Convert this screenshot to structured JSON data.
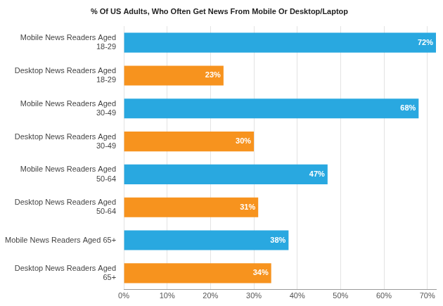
{
  "chart_data": {
    "type": "bar",
    "orientation": "horizontal",
    "title": "% Of US Adults, Who Often Get News From Mobile Or Desktop/Laptop",
    "categories": [
      "Mobile News Readers Aged 18-29",
      "Desktop News Readers Aged 18-29",
      "Mobile News Readers Aged 30-49",
      "Desktop News Readers Aged 30-49",
      "Mobile News Readers Aged 50-64",
      "Desktop News Readers Aged 50-64",
      "Mobile News Readers Aged 65+",
      "Desktop News Readers Aged 65+"
    ],
    "values": [
      72,
      23,
      68,
      30,
      47,
      31,
      38,
      34
    ],
    "value_labels": [
      "72%",
      "23%",
      "68%",
      "30%",
      "47%",
      "31%",
      "38%",
      "34%"
    ],
    "colors": [
      "#29a8e0",
      "#f7931e",
      "#29a8e0",
      "#f7931e",
      "#29a8e0",
      "#f7931e",
      "#29a8e0",
      "#f7931e"
    ],
    "xlim": [
      0,
      72
    ],
    "xticks": [
      {
        "value": 0,
        "label": "0%"
      },
      {
        "value": 10,
        "label": "10%"
      },
      {
        "value": 20,
        "label": "20%"
      },
      {
        "value": 30,
        "label": "30%"
      },
      {
        "value": 40,
        "label": "40%"
      },
      {
        "value": 50,
        "label": "50%"
      },
      {
        "value": 60,
        "label": "60%"
      },
      {
        "value": 70,
        "label": "70%"
      }
    ],
    "grid": true,
    "data_labels": true
  }
}
